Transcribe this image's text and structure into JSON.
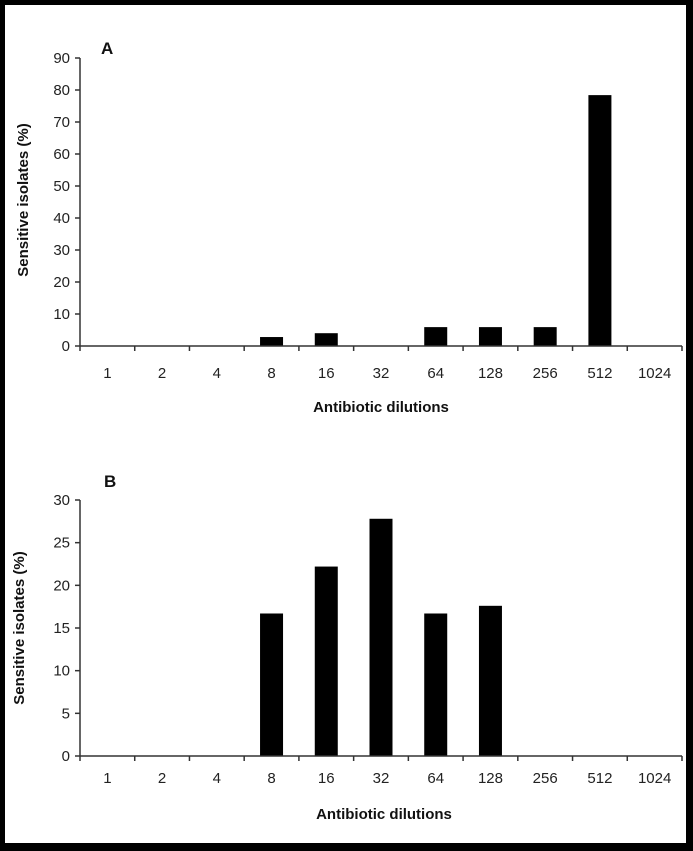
{
  "chart_data": [
    {
      "type": "bar",
      "panel_label": "A",
      "title": "A",
      "xlabel": "Antibiotic dilutions",
      "ylabel": "Sensitive isolates (%)",
      "categories": [
        "1",
        "2",
        "4",
        "8",
        "16",
        "32",
        "64",
        "128",
        "256",
        "512",
        "1024"
      ],
      "values": [
        0,
        0,
        0,
        2.8,
        4,
        0,
        5.9,
        5.9,
        5.9,
        78.4,
        0
      ],
      "ylim": [
        0,
        90
      ],
      "yticks": [
        0,
        10,
        20,
        30,
        40,
        50,
        60,
        70,
        80,
        90
      ],
      "grid": false,
      "legend": null
    },
    {
      "type": "bar",
      "panel_label": "B",
      "title": "B",
      "xlabel": "Antibiotic dilutions",
      "ylabel": "Sensitive isolates (%)",
      "categories": [
        "1",
        "2",
        "4",
        "8",
        "16",
        "32",
        "64",
        "128",
        "256",
        "512",
        "1024"
      ],
      "values": [
        0,
        0,
        0,
        16.7,
        22.2,
        27.8,
        16.7,
        17.6,
        0,
        0,
        0
      ],
      "ylim": [
        0,
        30
      ],
      "yticks": [
        0,
        5,
        10,
        15,
        20,
        25,
        30
      ],
      "grid": false,
      "legend": null
    }
  ],
  "colors": {
    "bar": "#000000",
    "axis": "#333333",
    "background": "#ffffff",
    "border": "#000000"
  }
}
